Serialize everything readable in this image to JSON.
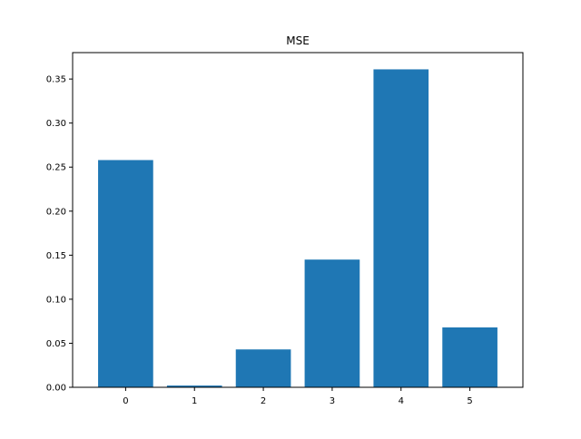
{
  "chart_data": {
    "type": "bar",
    "title": "MSE",
    "xlabel": "",
    "ylabel": "",
    "categories": [
      "0",
      "1",
      "2",
      "3",
      "4",
      "5"
    ],
    "values": [
      0.258,
      0.002,
      0.043,
      0.145,
      0.361,
      0.068
    ],
    "ylim": [
      0,
      0.38
    ],
    "yticks": [
      0.0,
      0.05,
      0.1,
      0.15,
      0.2,
      0.25,
      0.3,
      0.35
    ],
    "ytick_labels": [
      "0.00",
      "0.05",
      "0.10",
      "0.15",
      "0.20",
      "0.25",
      "0.30",
      "0.35"
    ],
    "bar_color": "#1f77b4",
    "grid": false,
    "legend": "none"
  }
}
